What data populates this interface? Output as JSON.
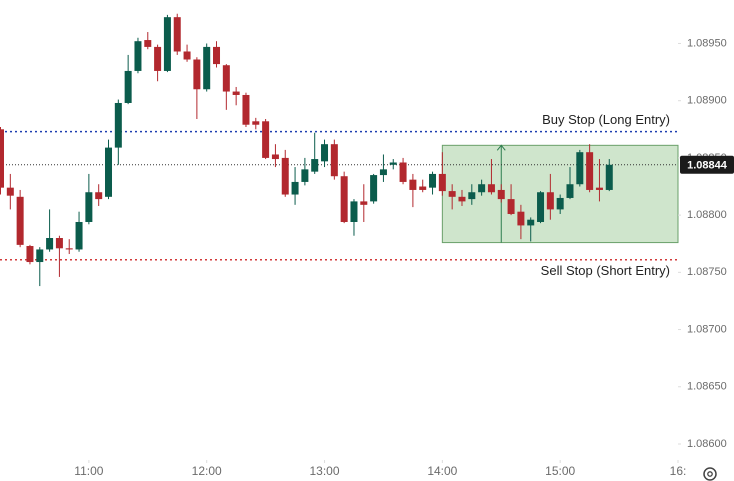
{
  "chart_data": {
    "type": "candlestick",
    "x": [
      "10:15",
      "10:20",
      "10:25",
      "10:30",
      "10:35",
      "10:40",
      "10:45",
      "10:50",
      "10:55",
      "11:00",
      "11:05",
      "11:10",
      "11:15",
      "11:20",
      "11:25",
      "11:30",
      "11:35",
      "11:40",
      "11:45",
      "11:50",
      "11:55",
      "12:00",
      "12:05",
      "12:10",
      "12:15",
      "12:20",
      "12:25",
      "12:30",
      "12:35",
      "12:40",
      "12:45",
      "12:50",
      "12:55",
      "13:00",
      "13:05",
      "13:10",
      "13:15",
      "13:20",
      "13:25",
      "13:30",
      "13:35",
      "13:40",
      "13:45",
      "13:50",
      "13:55",
      "14:00",
      "14:05",
      "14:10",
      "14:15",
      "14:20",
      "14:25",
      "14:30",
      "14:35",
      "14:40",
      "14:45",
      "14:50",
      "14:55",
      "15:00",
      "15:05",
      "15:10",
      "15:15",
      "15:20",
      "15:25"
    ],
    "open": [
      1.08875,
      1.08824,
      1.08816,
      1.08773,
      1.08759,
      1.0877,
      1.0878,
      1.08771,
      1.0877,
      1.08794,
      1.0882,
      1.08816,
      1.08859,
      1.08898,
      1.08926,
      1.08953,
      1.08947,
      1.08926,
      1.08973,
      1.08943,
      1.08936,
      1.0891,
      1.08947,
      1.08931,
      1.08908,
      1.08905,
      1.08882,
      1.08882,
      1.08853,
      1.0885,
      1.08818,
      1.08829,
      1.08838,
      1.08847,
      1.08862,
      1.08834,
      1.08794,
      1.08812,
      1.08812,
      1.08835,
      1.08844,
      1.08846,
      1.08831,
      1.08825,
      1.08824,
      1.08836,
      1.08821,
      1.08816,
      1.08814,
      1.0882,
      1.08827,
      1.08822,
      1.08814,
      1.08803,
      1.08791,
      1.08794,
      1.0882,
      1.08805,
      1.08815,
      1.08827,
      1.08855,
      1.08824,
      1.08822
    ],
    "high": [
      1.08877,
      1.08836,
      1.08822,
      1.08774,
      1.08772,
      1.08805,
      1.08782,
      1.08779,
      1.08803,
      1.08836,
      1.08827,
      1.08866,
      1.08901,
      1.0894,
      1.08955,
      1.0896,
      1.08949,
      1.08975,
      1.08976,
      1.08949,
      1.08938,
      1.0895,
      1.08952,
      1.08932,
      1.08912,
      1.08907,
      1.08885,
      1.08884,
      1.08862,
      1.08857,
      1.08842,
      1.0885,
      1.08872,
      1.08866,
      1.08866,
      1.08838,
      1.08814,
      1.08827,
      1.08836,
      1.08853,
      1.08849,
      1.0885,
      1.08836,
      1.08831,
      1.08838,
      1.08855,
      1.08827,
      1.08822,
      1.08827,
      1.08831,
      1.08849,
      1.08827,
      1.08827,
      1.08809,
      1.08798,
      1.08821,
      1.08836,
      1.08818,
      1.08842,
      1.08857,
      1.08862,
      1.08849,
      1.08849
    ],
    "low": [
      1.08818,
      1.08805,
      1.08772,
      1.08757,
      1.08738,
      1.08768,
      1.08746,
      1.08766,
      1.08768,
      1.08792,
      1.08808,
      1.08814,
      1.08844,
      1.08897,
      1.08924,
      1.08945,
      1.08917,
      1.08925,
      1.0894,
      1.08934,
      1.08884,
      1.08908,
      1.08929,
      1.08892,
      1.08896,
      1.08877,
      1.08875,
      1.08849,
      1.08842,
      1.08816,
      1.08809,
      1.08826,
      1.08836,
      1.08842,
      1.08831,
      1.08793,
      1.08782,
      1.08794,
      1.0881,
      1.08829,
      1.0884,
      1.08827,
      1.08807,
      1.0882,
      1.08818,
      1.08817,
      1.08805,
      1.08808,
      1.08809,
      1.08817,
      1.08818,
      1.08811,
      1.088,
      1.08779,
      1.08777,
      1.08793,
      1.08796,
      1.08801,
      1.08814,
      1.08825,
      1.0882,
      1.08812,
      1.08821
    ],
    "close": [
      1.08824,
      1.08817,
      1.08774,
      1.08759,
      1.0877,
      1.0878,
      1.08771,
      1.0877,
      1.08794,
      1.0882,
      1.08814,
      1.08859,
      1.08898,
      1.08926,
      1.08952,
      1.08947,
      1.08926,
      1.08973,
      1.08943,
      1.08936,
      1.0891,
      1.08947,
      1.08932,
      1.08908,
      1.08905,
      1.08879,
      1.08879,
      1.0885,
      1.08849,
      1.08818,
      1.08829,
      1.0884,
      1.08849,
      1.08862,
      1.08834,
      1.08794,
      1.08812,
      1.08809,
      1.08835,
      1.0884,
      1.08846,
      1.08829,
      1.08822,
      1.08822,
      1.08836,
      1.08821,
      1.08816,
      1.08812,
      1.0882,
      1.08827,
      1.0882,
      1.08814,
      1.08801,
      1.08791,
      1.08796,
      1.0882,
      1.08805,
      1.08815,
      1.08827,
      1.08855,
      1.08822,
      1.08822,
      1.08844
    ],
    "up_color": "#0b5c4c",
    "down_color": "#b2282e",
    "xlim": [
      "10:15",
      "16:00"
    ],
    "xticks": [
      "11:00",
      "12:00",
      "13:00",
      "14:00",
      "15:00",
      "16:"
    ],
    "ylim": [
      1.08586,
      1.08988
    ],
    "yticks": [
      {
        "value": 1.086,
        "label": "1.08600"
      },
      {
        "value": 1.0865,
        "label": "1.08650"
      },
      {
        "value": 1.087,
        "label": "1.08700"
      },
      {
        "value": 1.0875,
        "label": "1.08750"
      },
      {
        "value": 1.088,
        "label": "1.08800"
      },
      {
        "value": 1.0885,
        "label": "1.08850"
      },
      {
        "value": 1.089,
        "label": "1.08900"
      },
      {
        "value": 1.0895,
        "label": "1.08950"
      }
    ],
    "grid": false,
    "last_price": 1.08844,
    "buy_stop": {
      "label": "Buy Stop (Long Entry)",
      "value": 1.08873,
      "color": "#1e3fb0"
    },
    "sell_stop": {
      "label": "Sell Stop (Short Entry)",
      "value": 1.08761,
      "color": "#d23a3a"
    },
    "zone": {
      "top": 1.08861,
      "bottom": 1.08776,
      "start": "14:00",
      "arrow": "14:30",
      "color": "#cfe5cc"
    }
  }
}
